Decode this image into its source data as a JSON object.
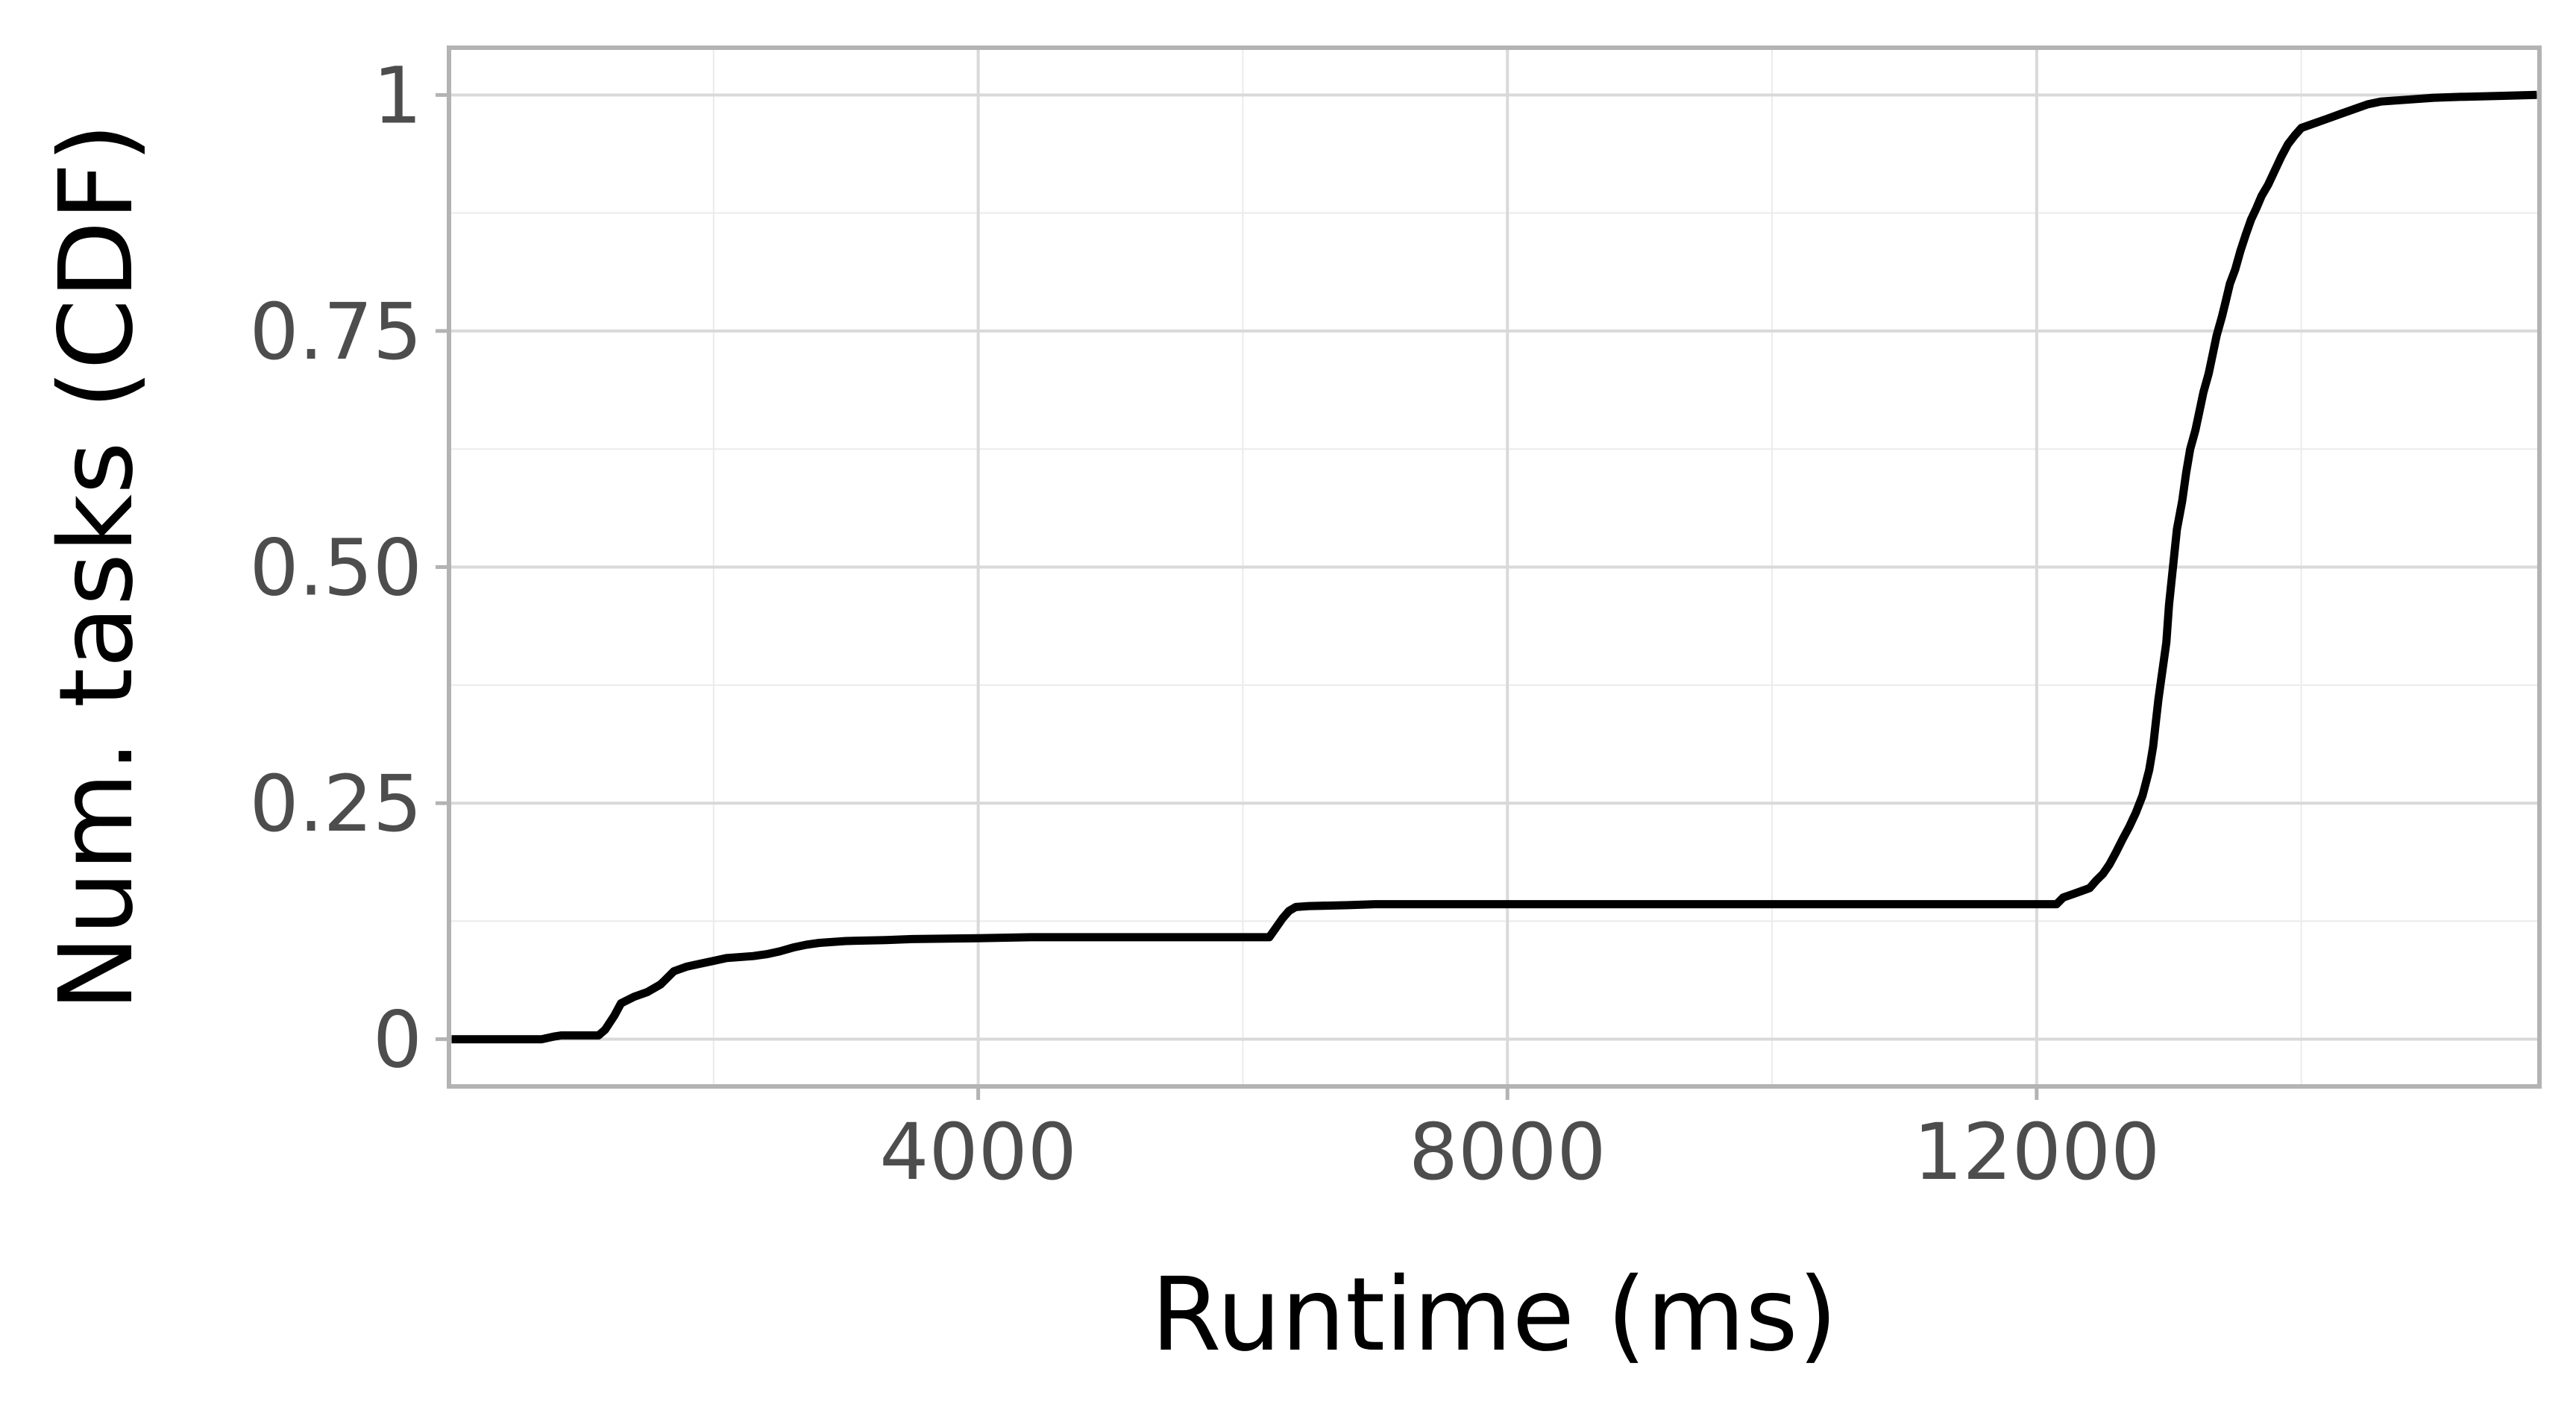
{
  "chart_data": {
    "type": "line",
    "title": "",
    "xlabel": "Runtime (ms)",
    "ylabel": "Num. tasks (CDF)",
    "xlim": [
      0,
      15800
    ],
    "ylim": [
      -0.05,
      1.05
    ],
    "x_ticks": [
      4000,
      8000,
      12000
    ],
    "x_tick_labels": [
      "4000",
      "8000",
      "12000"
    ],
    "x_minor_ticks": [
      2000,
      6000,
      10000,
      14000
    ],
    "y_ticks": [
      0,
      0.25,
      0.5,
      0.75,
      1
    ],
    "y_tick_labels": [
      "0",
      "0.25",
      "0.50",
      "0.75",
      "1"
    ],
    "y_minor_ticks": [
      0.125,
      0.375,
      0.625,
      0.875
    ],
    "grid": true,
    "legend": "none",
    "line_color": "#000000",
    "series": [
      {
        "x": [
          20,
          700,
          800,
          850,
          1130,
          1180,
          1250,
          1300,
          1400,
          1500,
          1600,
          1650,
          1700,
          1800,
          1900,
          2000,
          2100,
          2300,
          2400,
          2500,
          2600,
          2700,
          2800,
          3000,
          3300,
          3500,
          4000,
          4400,
          5000,
          5600,
          6000,
          6200,
          6250,
          6300,
          6350,
          6400,
          6500,
          6800,
          7000,
          8000,
          9000,
          10000,
          11000,
          12000,
          12150,
          12200,
          12300,
          12400,
          12450,
          12500,
          12550,
          12600,
          12650,
          12700,
          12750,
          12800,
          12850,
          12880,
          12900,
          12920,
          12950,
          12980,
          13000,
          13030,
          13060,
          13100,
          13130,
          13160,
          13200,
          13230,
          13260,
          13300,
          13330,
          13360,
          13400,
          13430,
          13460,
          13500,
          13540,
          13580,
          13620,
          13660,
          13700,
          13750,
          13800,
          13850,
          13900,
          13950,
          14000,
          14100,
          14200,
          14300,
          14400,
          14500,
          14600,
          14800,
          15000,
          15200,
          15500,
          15780
        ],
        "y": [
          0,
          0,
          0.003,
          0.004,
          0.004,
          0.01,
          0.025,
          0.038,
          0.045,
          0.05,
          0.058,
          0.065,
          0.072,
          0.077,
          0.08,
          0.083,
          0.086,
          0.088,
          0.09,
          0.093,
          0.097,
          0.1,
          0.102,
          0.104,
          0.105,
          0.106,
          0.107,
          0.108,
          0.108,
          0.108,
          0.108,
          0.108,
          0.118,
          0.128,
          0.136,
          0.14,
          0.141,
          0.142,
          0.143,
          0.143,
          0.143,
          0.143,
          0.143,
          0.143,
          0.143,
          0.15,
          0.155,
          0.16,
          0.168,
          0.175,
          0.185,
          0.198,
          0.212,
          0.225,
          0.24,
          0.258,
          0.285,
          0.31,
          0.335,
          0.36,
          0.39,
          0.42,
          0.46,
          0.5,
          0.54,
          0.57,
          0.6,
          0.625,
          0.645,
          0.665,
          0.685,
          0.705,
          0.725,
          0.745,
          0.765,
          0.782,
          0.8,
          0.815,
          0.835,
          0.852,
          0.868,
          0.88,
          0.893,
          0.905,
          0.92,
          0.935,
          0.948,
          0.957,
          0.965,
          0.97,
          0.975,
          0.98,
          0.985,
          0.99,
          0.993,
          0.995,
          0.997,
          0.998,
          0.999,
          1.0
        ]
      }
    ]
  }
}
